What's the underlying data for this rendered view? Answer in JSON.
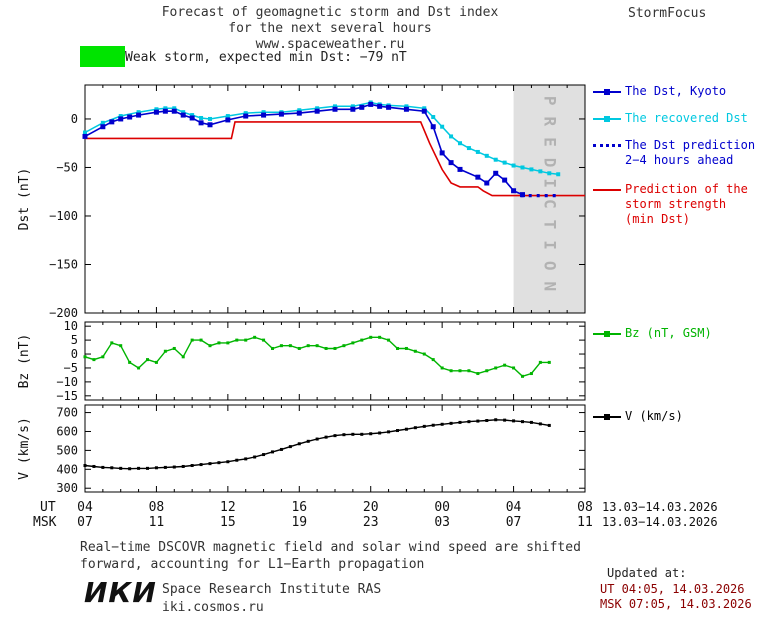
{
  "header": {
    "title_line1": "Forecast of geomagnetic storm and Dst index",
    "title_line2": "for the next several hours",
    "title_line3": "www.spaceweather.ru",
    "brand": "StormFocus"
  },
  "banner": {
    "label": "Weak storm, expected min Dst: −79 nT",
    "swatch_color": "#00e400"
  },
  "legend": {
    "items": [
      {
        "id": "dst-kyoto",
        "color": "#0000cd",
        "sample": "line-square",
        "lines": [
          "The Dst, Kyoto"
        ]
      },
      {
        "id": "recovered-dst",
        "color": "#00c8e0",
        "sample": "line-square",
        "lines": [
          "The recovered Dst"
        ]
      },
      {
        "id": "dst-prediction",
        "color": "#0000cd",
        "sample": "dotted",
        "lines": [
          "The Dst prediction",
          "2−4 hours ahead"
        ]
      },
      {
        "id": "storm-strength",
        "color": "#dc0000",
        "sample": "line",
        "lines": [
          "Prediction of the",
          "storm strength",
          "(min Dst)"
        ]
      },
      {
        "id": "bz",
        "color": "#00b400",
        "sample": "line-square",
        "lines": [
          "Bz (nT, GSM)"
        ]
      },
      {
        "id": "v",
        "color": "#000000",
        "sample": "line-square",
        "lines": [
          "V (km/s)"
        ]
      }
    ]
  },
  "axis": {
    "ut_label": "UT",
    "msk_label": "MSK",
    "ut_ticks": [
      "04",
      "08",
      "12",
      "16",
      "20",
      "00",
      "04",
      "08"
    ],
    "msk_ticks": [
      "07",
      "11",
      "15",
      "19",
      "23",
      "03",
      "07",
      "11"
    ],
    "date_range_ut": "13.03−14.03.2026",
    "date_range_msk": "13.03−14.03.2026"
  },
  "footnote": {
    "line1": "Real−time DSCOVR magnetic field and solar wind speed are shifted",
    "line2": "forward, accounting for L1−Earth propagation"
  },
  "updated": {
    "heading": "Updated at:",
    "ut": "UT  04:05, 14.03.2026",
    "msk": "MSK 07:05, 14.03.2026"
  },
  "footer": {
    "logo": "ИКИ",
    "institute": "Space Research Institute RAS",
    "site": "iki.cosmos.ru"
  },
  "chart_data": [
    {
      "id": "dst",
      "type": "line",
      "title": "Forecast of geomagnetic storm and Dst index",
      "ylabel": "Dst (nT)",
      "xlabel": "UT hours 13.03-14.03.2026",
      "xlim": [
        4,
        32
      ],
      "ylim": [
        -200,
        35
      ],
      "yticks": [
        {
          "v": 0,
          "label": "0"
        },
        {
          "v": -50,
          "label": "−50"
        },
        {
          "v": -100,
          "label": "−100"
        },
        {
          "v": -150,
          "label": "−150"
        },
        {
          "v": -200,
          "label": "−200"
        }
      ],
      "band": {
        "from": 28,
        "to": 32,
        "color": "#e0e0e0",
        "label": "PREDICTION",
        "label_color": "#b2b2b2"
      },
      "series": [
        {
          "id": "storm-strength",
          "name": "Prediction of the storm strength (min Dst)",
          "color": "#dc0000",
          "width": 1.6,
          "points": [
            [
              4,
              -20
            ],
            [
              12.2,
              -20
            ],
            [
              12.4,
              -3
            ],
            [
              22.8,
              -3
            ],
            [
              23.3,
              -25
            ],
            [
              24,
              -52
            ],
            [
              24.5,
              -66
            ],
            [
              25,
              -70
            ],
            [
              26,
              -70
            ],
            [
              26.3,
              -74
            ],
            [
              26.8,
              -79
            ],
            [
              32,
              -79
            ]
          ]
        },
        {
          "id": "recovered-dst",
          "name": "The recovered Dst",
          "color": "#00c8e0",
          "width": 1.5,
          "marker": 4,
          "points": [
            [
              4,
              -14
            ],
            [
              5,
              -4
            ],
            [
              6,
              3
            ],
            [
              7,
              7
            ],
            [
              8,
              10
            ],
            [
              8.5,
              11
            ],
            [
              9,
              11
            ],
            [
              9.5,
              7
            ],
            [
              10,
              4
            ],
            [
              10.5,
              1
            ],
            [
              11,
              0
            ],
            [
              12,
              3
            ],
            [
              13,
              6
            ],
            [
              14,
              7
            ],
            [
              15,
              7
            ],
            [
              16,
              9
            ],
            [
              17,
              11
            ],
            [
              18,
              13
            ],
            [
              19,
              13
            ],
            [
              20,
              17
            ],
            [
              20.5,
              15
            ],
            [
              21,
              14
            ],
            [
              22,
              13
            ],
            [
              23,
              11
            ],
            [
              23.5,
              2
            ],
            [
              24,
              -8
            ],
            [
              24.5,
              -18
            ],
            [
              25,
              -25
            ],
            [
              25.5,
              -30
            ],
            [
              26,
              -34
            ],
            [
              26.5,
              -38
            ],
            [
              27,
              -42
            ],
            [
              27.5,
              -45
            ],
            [
              28,
              -48
            ],
            [
              28.5,
              -50
            ],
            [
              29,
              -52
            ],
            [
              29.5,
              -54
            ],
            [
              30,
              -56
            ],
            [
              30.5,
              -57
            ]
          ]
        },
        {
          "id": "dst-kyoto",
          "name": "The Dst, Kyoto",
          "color": "#0000cd",
          "width": 1.6,
          "marker": 5,
          "points": [
            [
              4,
              -18
            ],
            [
              5,
              -8
            ],
            [
              5.5,
              -3
            ],
            [
              6,
              0
            ],
            [
              6.5,
              2
            ],
            [
              7,
              4
            ],
            [
              8,
              7
            ],
            [
              8.5,
              8
            ],
            [
              9,
              8
            ],
            [
              9.5,
              4
            ],
            [
              10,
              1
            ],
            [
              10.5,
              -4
            ],
            [
              11,
              -6
            ],
            [
              12,
              -1
            ],
            [
              13,
              3
            ],
            [
              14,
              4
            ],
            [
              15,
              5
            ],
            [
              16,
              6
            ],
            [
              17,
              8
            ],
            [
              18,
              10
            ],
            [
              19,
              10
            ],
            [
              19.5,
              12
            ],
            [
              20,
              15
            ],
            [
              20.5,
              13
            ],
            [
              21,
              12
            ],
            [
              22,
              10
            ],
            [
              23,
              8
            ],
            [
              23.5,
              -8
            ],
            [
              24,
              -35
            ],
            [
              24.5,
              -45
            ],
            [
              25,
              -52
            ],
            [
              26,
              -60
            ],
            [
              26.5,
              -66
            ],
            [
              27,
              -56
            ],
            [
              27.5,
              -63
            ],
            [
              28,
              -74
            ],
            [
              28.5,
              -78
            ]
          ]
        },
        {
          "id": "dst-prediction",
          "name": "The Dst prediction 2−4 hours ahead",
          "color": "#0000cd",
          "width": 3.2,
          "dash": "3 5",
          "points": [
            [
              28.4,
              -79
            ],
            [
              30.5,
              -79
            ]
          ]
        }
      ]
    },
    {
      "id": "bz",
      "type": "line",
      "ylabel": "Bz (nT)",
      "xlim": [
        4,
        32
      ],
      "ylim": [
        -16.5,
        11.5
      ],
      "yticks": [
        {
          "v": 10,
          "label": "10"
        },
        {
          "v": 5,
          "label": "5"
        },
        {
          "v": 0,
          "label": "0"
        },
        {
          "v": -5,
          "label": "−5"
        },
        {
          "v": -10,
          "label": "−10"
        },
        {
          "v": -15,
          "label": "−15"
        }
      ],
      "series": [
        {
          "id": "bz",
          "name": "Bz (nT, GSM)",
          "color": "#00b400",
          "width": 1.4,
          "marker": 3,
          "points": [
            [
              4,
              -1
            ],
            [
              4.5,
              -2
            ],
            [
              5,
              -1
            ],
            [
              5.5,
              4
            ],
            [
              6,
              3
            ],
            [
              6.5,
              -3
            ],
            [
              7,
              -5
            ],
            [
              7.5,
              -2
            ],
            [
              8,
              -3
            ],
            [
              8.5,
              1
            ],
            [
              9,
              2
            ],
            [
              9.5,
              -1
            ],
            [
              10,
              5
            ],
            [
              10.5,
              5
            ],
            [
              11,
              3
            ],
            [
              11.5,
              4
            ],
            [
              12,
              4
            ],
            [
              12.5,
              5
            ],
            [
              13,
              5
            ],
            [
              13.5,
              6
            ],
            [
              14,
              5
            ],
            [
              14.5,
              2
            ],
            [
              15,
              3
            ],
            [
              15.5,
              3
            ],
            [
              16,
              2
            ],
            [
              16.5,
              3
            ],
            [
              17,
              3
            ],
            [
              17.5,
              2
            ],
            [
              18,
              2
            ],
            [
              18.5,
              3
            ],
            [
              19,
              4
            ],
            [
              19.5,
              5
            ],
            [
              20,
              6
            ],
            [
              20.5,
              6
            ],
            [
              21,
              5
            ],
            [
              21.5,
              2
            ],
            [
              22,
              2
            ],
            [
              22.5,
              1
            ],
            [
              23,
              0
            ],
            [
              23.5,
              -2
            ],
            [
              24,
              -5
            ],
            [
              24.5,
              -6
            ],
            [
              25,
              -6
            ],
            [
              25.5,
              -6
            ],
            [
              26,
              -7
            ],
            [
              26.5,
              -6
            ],
            [
              27,
              -5
            ],
            [
              27.5,
              -4
            ],
            [
              28,
              -5
            ],
            [
              28.5,
              -8
            ],
            [
              29,
              -7
            ],
            [
              29.5,
              -3
            ],
            [
              30,
              -3
            ]
          ]
        }
      ]
    },
    {
      "id": "v",
      "type": "line",
      "ylabel": "V (km/s)",
      "xlim": [
        4,
        32
      ],
      "ylim": [
        280,
        740
      ],
      "yticks": [
        {
          "v": 700,
          "label": "700"
        },
        {
          "v": 600,
          "label": "600"
        },
        {
          "v": 500,
          "label": "500"
        },
        {
          "v": 400,
          "label": "400"
        },
        {
          "v": 300,
          "label": "300"
        }
      ],
      "series": [
        {
          "id": "v",
          "name": "V (km/s)",
          "color": "#000000",
          "width": 1.4,
          "marker": 3,
          "points": [
            [
              4,
              420
            ],
            [
              4.5,
              415
            ],
            [
              5,
              410
            ],
            [
              5.5,
              408
            ],
            [
              6,
              405
            ],
            [
              6.5,
              403
            ],
            [
              7,
              405
            ],
            [
              7.5,
              405
            ],
            [
              8,
              408
            ],
            [
              8.5,
              410
            ],
            [
              9,
              412
            ],
            [
              9.5,
              415
            ],
            [
              10,
              420
            ],
            [
              10.5,
              425
            ],
            [
              11,
              430
            ],
            [
              11.5,
              435
            ],
            [
              12,
              440
            ],
            [
              12.5,
              448
            ],
            [
              13,
              455
            ],
            [
              13.5,
              465
            ],
            [
              14,
              478
            ],
            [
              14.5,
              492
            ],
            [
              15,
              505
            ],
            [
              15.5,
              520
            ],
            [
              16,
              535
            ],
            [
              16.5,
              548
            ],
            [
              17,
              560
            ],
            [
              17.5,
              570
            ],
            [
              18,
              578
            ],
            [
              18.5,
              583
            ],
            [
              19,
              585
            ],
            [
              19.5,
              585
            ],
            [
              20,
              588
            ],
            [
              20.5,
              592
            ],
            [
              21,
              598
            ],
            [
              21.5,
              605
            ],
            [
              22,
              612
            ],
            [
              22.5,
              620
            ],
            [
              23,
              627
            ],
            [
              23.5,
              633
            ],
            [
              24,
              638
            ],
            [
              24.5,
              643
            ],
            [
              25,
              648
            ],
            [
              25.5,
              652
            ],
            [
              26,
              655
            ],
            [
              26.5,
              658
            ],
            [
              27,
              662
            ],
            [
              27.5,
              660
            ],
            [
              28,
              656
            ],
            [
              28.5,
              652
            ],
            [
              29,
              648
            ],
            [
              29.5,
              640
            ],
            [
              30,
              632
            ]
          ]
        }
      ]
    }
  ]
}
